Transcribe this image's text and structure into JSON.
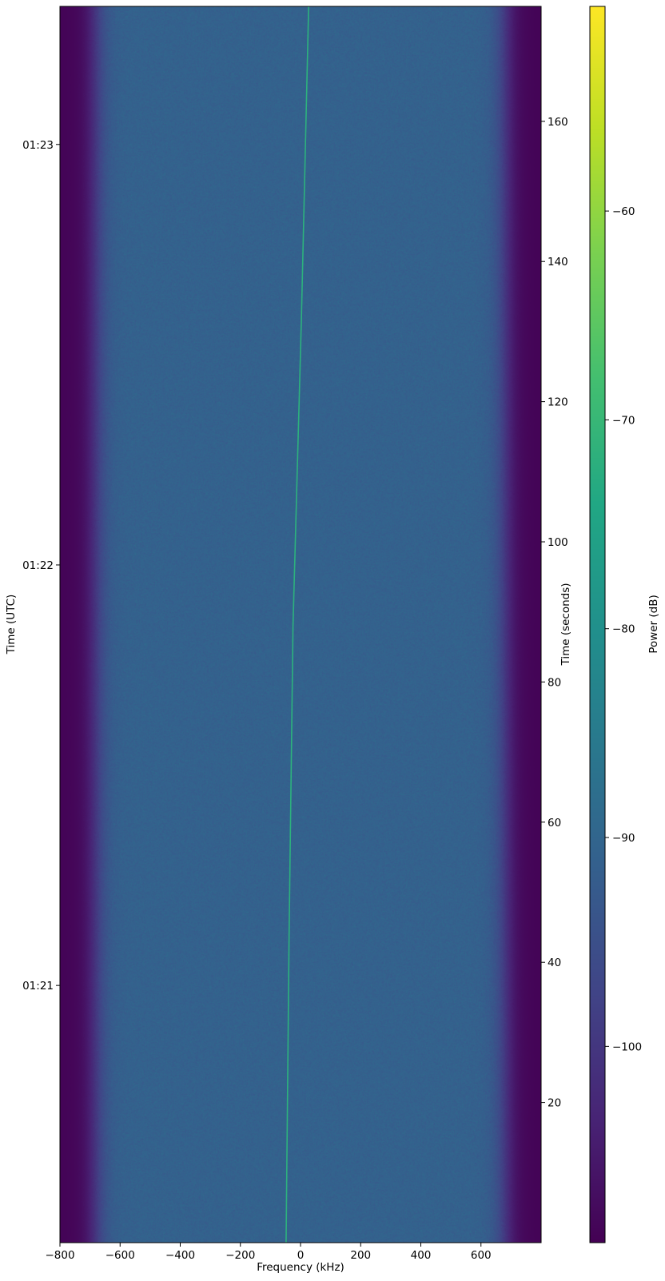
{
  "chart_data": {
    "type": "heatmap",
    "title": "",
    "xlabel": "Frequency (kHz)",
    "ylabel_left": "Time (UTC)",
    "ylabel_right": "Time (seconds)",
    "colorbar_label": "Power (dB)",
    "colormap": "viridis",
    "xlim": [
      -800,
      800
    ],
    "ylim": [
      0,
      176.4
    ],
    "clim": [
      -109.4,
      -50.2
    ],
    "x_ticks": [
      -800,
      -600,
      -400,
      -200,
      0,
      200,
      400,
      600
    ],
    "y_ticks_right": [
      20,
      40,
      60,
      80,
      100,
      120,
      140,
      160
    ],
    "y_ticks_left": [
      {
        "label": "01:21",
        "seconds": 36.7
      },
      {
        "label": "01:22",
        "seconds": 96.7
      },
      {
        "label": "01:23",
        "seconds": 156.7
      }
    ],
    "colorbar_ticks": [
      -60,
      -70,
      -80,
      -90,
      -100
    ],
    "noise_floor_db": -91,
    "band_edge_db": -109,
    "passband_khz": [
      -680,
      680
    ],
    "signal": {
      "power_db": -72,
      "color": "#2db27d",
      "points": [
        {
          "t": 0,
          "f": -48
        },
        {
          "t": 44,
          "f": -38
        },
        {
          "t": 88,
          "f": -25
        },
        {
          "t": 132,
          "f": 3
        },
        {
          "t": 176.4,
          "f": 27
        }
      ]
    },
    "grid": false
  }
}
